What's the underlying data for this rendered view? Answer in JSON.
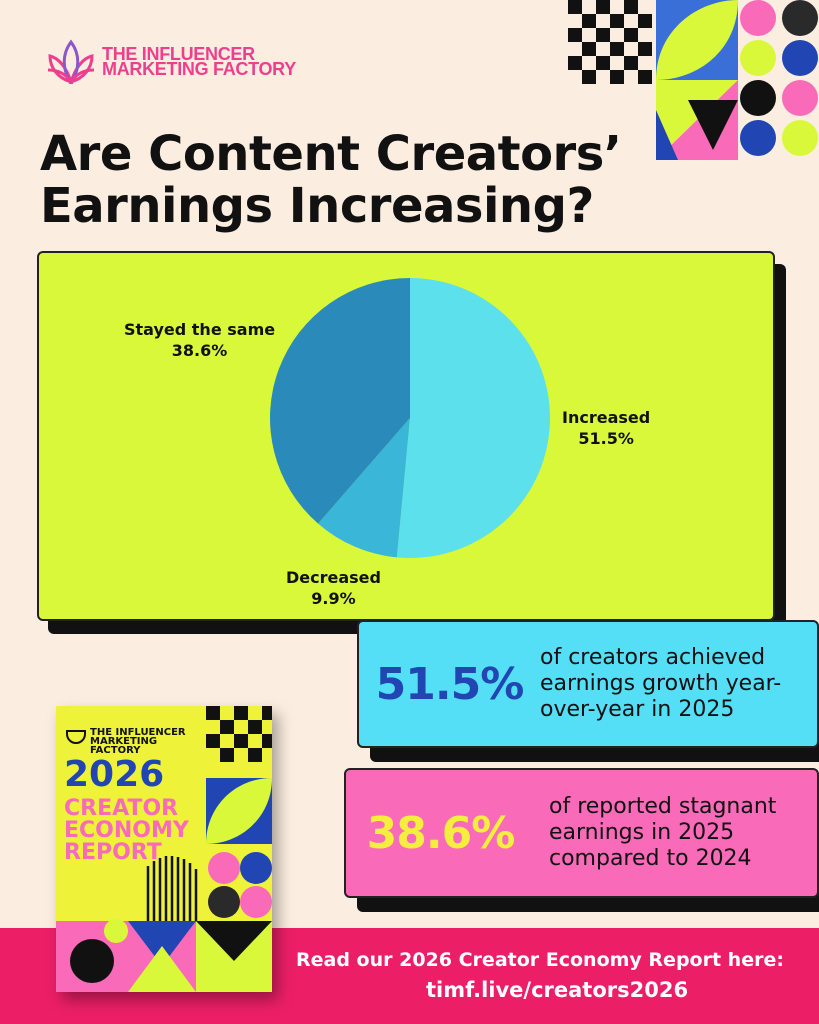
{
  "brand": {
    "logo_text": "THE INFLUENCER MARKETING FACTORY",
    "brand_color": "#ee3f8f"
  },
  "headline": "Are Content Creators’ Earnings Increasing?",
  "chart_data": {
    "type": "pie",
    "title": "",
    "slices": [
      {
        "label": "Increased",
        "value": 51.5,
        "display": "51.5%",
        "color": "#5ce0ec"
      },
      {
        "label": "Decreased",
        "value": 9.9,
        "display": "9.9%",
        "color": "#3ab6d9"
      },
      {
        "label": "Stayed the same",
        "value": 38.6,
        "display": "38.6%",
        "color": "#2a8bbb"
      }
    ],
    "start_angle_deg": 0,
    "direction": "clockwise",
    "card_color": "#d9f83a"
  },
  "stats": [
    {
      "value": "51.5%",
      "text": "of creators achieved earnings growth year-over-year in 2025",
      "box_color": "#54dff7",
      "value_color": "#2146b3"
    },
    {
      "value": "38.6%",
      "text": "of reported stagnant earnings in 2025 compared to 2024",
      "box_color": "#f96ab8",
      "value_color": "#f4ef3e"
    }
  ],
  "report": {
    "brand": "THE INFLUENCER MARKETING FACTORY",
    "year": "2026",
    "title_line1": "CREATOR",
    "title_line2": "ECONOMY",
    "title_line3": "REPORT"
  },
  "footer": {
    "line1": "Read our 2026 Creator Economy Report here:",
    "line2": "timf.live/creators2026",
    "color": "#ec1f66"
  }
}
